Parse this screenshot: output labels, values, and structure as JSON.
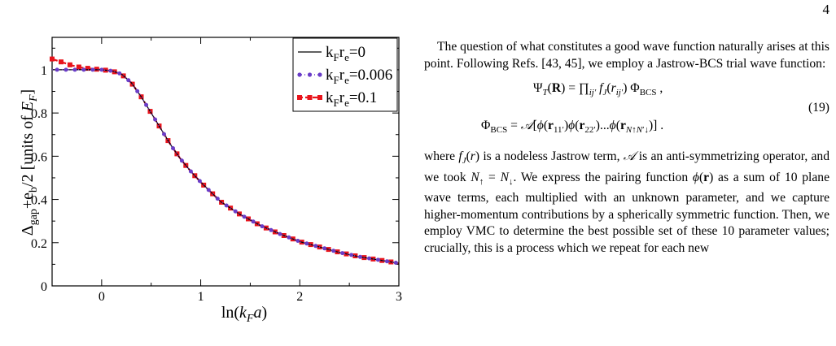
{
  "page_number": "4",
  "chart_data": {
    "type": "line",
    "xlabel": "ln(k_F a)",
    "ylabel": "Δ_gap + e_b/2 [units of E_F]",
    "xlim": [
      -0.5,
      3
    ],
    "ylim": [
      0,
      1.15
    ],
    "x_ticks": [
      "0",
      "1",
      "2",
      "3"
    ],
    "y_ticks": [
      "0",
      "0.2",
      "0.4",
      "0.6",
      "0.8",
      "1"
    ],
    "legend_position": "top-right",
    "series": [
      {
        "name": "k_F r_e=0",
        "style": "solid",
        "color": "#000000",
        "x": [
          -0.5,
          -0.3,
          -0.1,
          0.0,
          0.1,
          0.2,
          0.3,
          0.4,
          0.5,
          0.6,
          0.7,
          0.8,
          0.9,
          1.0,
          1.2,
          1.4,
          1.6,
          1.8,
          2.0,
          2.2,
          2.4,
          2.6,
          2.8,
          3.0
        ],
        "y": [
          1.0,
          1.0,
          1.0,
          1.0,
          0.995,
          0.98,
          0.94,
          0.875,
          0.8,
          0.725,
          0.65,
          0.585,
          0.53,
          0.48,
          0.39,
          0.33,
          0.28,
          0.24,
          0.205,
          0.18,
          0.155,
          0.135,
          0.12,
          0.105
        ]
      },
      {
        "name": "k_F r_e=0.006",
        "style": "dotted",
        "color": "#6a3dc8",
        "x": [
          -0.5,
          -0.3,
          -0.1,
          0.0,
          0.1,
          0.2,
          0.3,
          0.4,
          0.5,
          0.6,
          0.7,
          0.8,
          0.9,
          1.0,
          1.2,
          1.4,
          1.6,
          1.8,
          2.0,
          2.2,
          2.4,
          2.6,
          2.8,
          3.0
        ],
        "y": [
          1.0,
          1.0,
          1.0,
          1.0,
          0.995,
          0.98,
          0.94,
          0.875,
          0.8,
          0.725,
          0.65,
          0.585,
          0.53,
          0.48,
          0.39,
          0.33,
          0.28,
          0.24,
          0.205,
          0.18,
          0.155,
          0.135,
          0.12,
          0.105
        ]
      },
      {
        "name": "k_F r_e=0.1",
        "style": "dashed",
        "color": "#e8141c",
        "x": [
          -0.5,
          -0.4,
          -0.3,
          -0.2,
          -0.1,
          0.0,
          0.1,
          0.2,
          0.3,
          0.4,
          0.5,
          0.6,
          0.7,
          0.8,
          0.9,
          1.0,
          1.2,
          1.4,
          1.6,
          1.8,
          2.0,
          2.2,
          2.4,
          2.6,
          2.8,
          3.0
        ],
        "y": [
          1.05,
          1.035,
          1.02,
          1.01,
          1.005,
          1.0,
          0.995,
          0.98,
          0.94,
          0.875,
          0.8,
          0.725,
          0.65,
          0.585,
          0.53,
          0.48,
          0.39,
          0.33,
          0.28,
          0.24,
          0.205,
          0.18,
          0.155,
          0.135,
          0.12,
          0.105
        ]
      }
    ]
  },
  "text": {
    "p1": "The question of what constitutes a good wave function naturally arises at this point. Following Refs. [43, 45], we employ a Jastrow-BCS trial wave function:",
    "eq_number": "(19)",
    "p2a": "where ",
    "p2b": " is a nodeless Jastrow term, ",
    "p2c": " is an anti-symmetrizing operator, and we took ",
    "p2d": ". We express the pairing function ",
    "p2e": " as a sum of 10 plane wave terms, each multiplied with an unknown parameter, and we capture higher-momentum contributions by a spherically symmetric function. Then, we employ VMC to determine the best possible set of these 10 parameter values; crucially, this is a process which we repeat for each new"
  }
}
